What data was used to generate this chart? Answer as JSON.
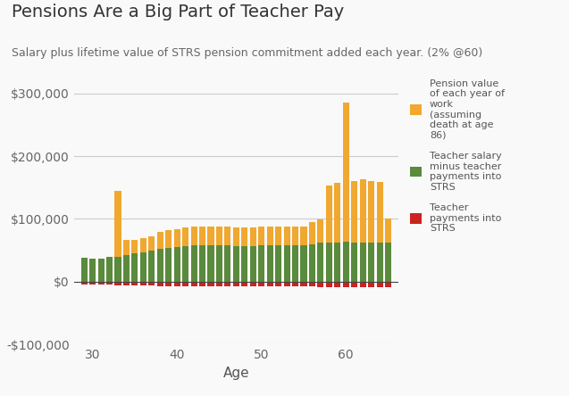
{
  "title": "Pensions Are a Big Part of Teacher Pay",
  "subtitle": "Salary plus lifetime value of STRS pension commitment added each year. (2% @60)",
  "xlabel": "Age",
  "ages": [
    29,
    30,
    31,
    32,
    33,
    34,
    35,
    36,
    37,
    38,
    39,
    40,
    41,
    42,
    43,
    44,
    45,
    46,
    47,
    48,
    49,
    50,
    51,
    52,
    53,
    54,
    55,
    56,
    57,
    58,
    59,
    60,
    61,
    62,
    63,
    64,
    65
  ],
  "pension_above_salary": [
    0,
    0,
    0,
    0,
    105000,
    25000,
    22000,
    22000,
    24000,
    27000,
    28000,
    28000,
    30000,
    30000,
    30000,
    30000,
    30000,
    30000,
    30000,
    30000,
    30000,
    30000,
    30000,
    30000,
    30000,
    30000,
    30000,
    35000,
    37000,
    90000,
    95000,
    222000,
    98000,
    100000,
    98000,
    97000,
    38000
  ],
  "salary_values": [
    38000,
    37000,
    37000,
    39000,
    40000,
    42000,
    45000,
    47000,
    49000,
    52000,
    54000,
    55000,
    57000,
    58000,
    58000,
    58000,
    58000,
    58000,
    57000,
    57000,
    57000,
    58000,
    58000,
    58000,
    58000,
    58000,
    58000,
    60000,
    62000,
    63000,
    63000,
    64000,
    63000,
    63000,
    62000,
    62000,
    63000
  ],
  "teacher_payments": [
    -5000,
    -5000,
    -5000,
    -5000,
    -5500,
    -5500,
    -6000,
    -6200,
    -6400,
    -6800,
    -7000,
    -7200,
    -7400,
    -7500,
    -7500,
    -7500,
    -7500,
    -7500,
    -7500,
    -7400,
    -7400,
    -7500,
    -7500,
    -7500,
    -7500,
    -7500,
    -7500,
    -7800,
    -8000,
    -8200,
    -8200,
    -8300,
    -8200,
    -8200,
    -8000,
    -8000,
    -8200
  ],
  "pension_color": "#f0a830",
  "salary_color": "#5a8a3c",
  "payment_color": "#cc2222",
  "background_color": "#f9f9f9",
  "grid_color": "#cccccc",
  "ylim": [
    -100000,
    310000
  ],
  "yticks": [
    -100000,
    0,
    100000,
    200000,
    300000
  ],
  "legend_labels": [
    "Pension value\nof each year of\nwork\n(assuming\ndeath at age\n86)",
    "Teacher salary\nminus teacher\npayments into\nSTRS",
    "Teacher\npayments into\nSTRS"
  ],
  "title_fontsize": 14,
  "subtitle_fontsize": 9,
  "tick_fontsize": 10,
  "xlabel_fontsize": 11
}
